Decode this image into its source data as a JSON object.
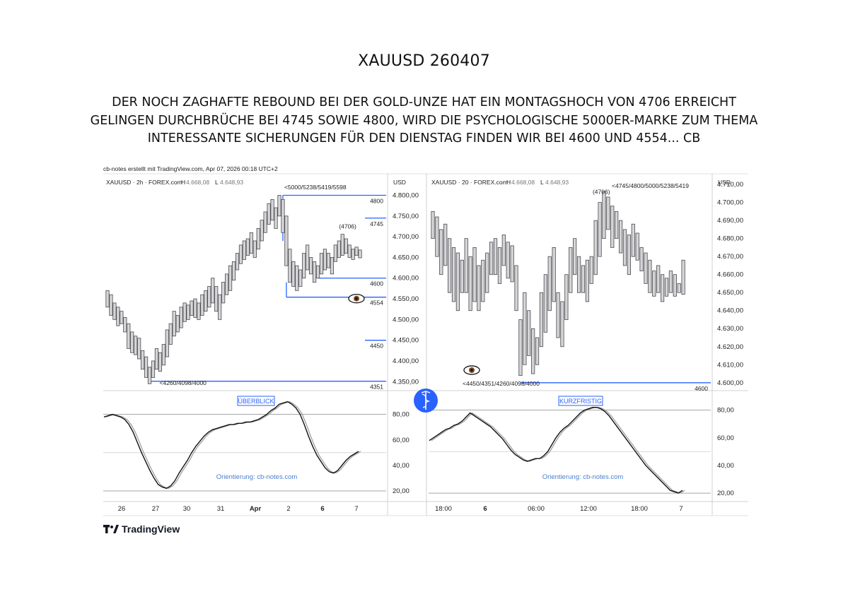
{
  "header": {
    "title": "XAUUSD 260407",
    "lines": [
      "DER NOCH ZAGHAFTE REBOUND BEI DER GOLD-UNZE HAT EIN MONTAGSHOCH VON 4706 ERREICHT",
      "GELINGEN DURCHBRÜCHE BEI 4745 SOWIE 4800, WIRD DIE PSYCHOLOGISCHE 5000ER-MARKE ZUM THEMA",
      "INTERESSANTE SICHERUNGEN FÜR DEN DIENSTAG FINDEN WIR BEI 4600 UND 4554... CB"
    ]
  },
  "credit": "cb-notes erstellt mit TradingView.com, Apr 07, 2026 00:18 UTC+2",
  "branding": {
    "name": "TradingView",
    "logo_icon": "tradingview-logo-icon",
    "center_badge_icon": "caduceus-icon",
    "badge_color": "#2962ff"
  },
  "colors": {
    "level_line": "#2962ff",
    "bar_fill": "#d5d5d8",
    "bar_stroke": "#4a4a4e",
    "osc_line": "#111111",
    "osc_signal": "#9a9a9a",
    "watermark": "#4a7fd0"
  },
  "chart_data": [
    {
      "type": "bar",
      "panel": "left",
      "symbol_line": {
        "name": "XAUUSD · 2h · FOREX.com",
        "h_label": "H",
        "h_value": "4.668,08",
        "l_label": "L",
        "l_value": "4.648,93"
      },
      "currency": "USD",
      "ylim": [
        4330,
        4835
      ],
      "y_ticks": [
        4350,
        4400,
        4450,
        4500,
        4550,
        4600,
        4650,
        4700,
        4750,
        4800
      ],
      "y_tick_labels": [
        "4.350,00",
        "4.400,00",
        "4.450,00",
        "4.500,00",
        "4.550,00",
        "4.600,00",
        "4.650,00",
        "4.700,00",
        "4.750,00",
        "4.800,00"
      ],
      "x_tick_labels": [
        "26",
        "27",
        "30",
        "31",
        "Apr",
        "2",
        "6",
        "7"
      ],
      "ohlc_hl": [
        [
          4570,
          4530
        ],
        [
          4560,
          4510
        ],
        [
          4540,
          4500
        ],
        [
          4530,
          4485
        ],
        [
          4520,
          4490
        ],
        [
          4505,
          4470
        ],
        [
          4490,
          4430
        ],
        [
          4470,
          4420
        ],
        [
          4460,
          4415
        ],
        [
          4455,
          4405
        ],
        [
          4425,
          4380
        ],
        [
          4410,
          4360
        ],
        [
          4385,
          4345
        ],
        [
          4400,
          4360
        ],
        [
          4430,
          4380
        ],
        [
          4420,
          4375
        ],
        [
          4440,
          4390
        ],
        [
          4475,
          4410
        ],
        [
          4490,
          4440
        ],
        [
          4520,
          4460
        ],
        [
          4510,
          4470
        ],
        [
          4530,
          4480
        ],
        [
          4540,
          4495
        ],
        [
          4535,
          4500
        ],
        [
          4545,
          4510
        ],
        [
          4550,
          4505
        ],
        [
          4540,
          4500
        ],
        [
          4560,
          4510
        ],
        [
          4570,
          4520
        ],
        [
          4580,
          4530
        ],
        [
          4600,
          4540
        ],
        [
          4580,
          4520
        ],
        [
          4560,
          4500
        ],
        [
          4590,
          4540
        ],
        [
          4610,
          4560
        ],
        [
          4630,
          4570
        ],
        [
          4640,
          4595
        ],
        [
          4660,
          4620
        ],
        [
          4680,
          4635
        ],
        [
          4690,
          4645
        ],
        [
          4695,
          4655
        ],
        [
          4710,
          4660
        ],
        [
          4690,
          4650
        ],
        [
          4720,
          4670
        ],
        [
          4740,
          4690
        ],
        [
          4760,
          4710
        ],
        [
          4780,
          4730
        ],
        [
          4790,
          4740
        ],
        [
          4770,
          4720
        ],
        [
          4800,
          4750
        ],
        [
          4790,
          4710
        ],
        [
          4750,
          4630
        ],
        [
          4670,
          4590
        ],
        [
          4640,
          4580
        ],
        [
          4630,
          4570
        ],
        [
          4620,
          4580
        ],
        [
          4660,
          4600
        ],
        [
          4680,
          4620
        ],
        [
          4650,
          4610
        ],
        [
          4640,
          4590
        ],
        [
          4630,
          4600
        ],
        [
          4660,
          4610
        ],
        [
          4670,
          4620
        ],
        [
          4660,
          4625
        ],
        [
          4650,
          4610
        ],
        [
          4680,
          4640
        ],
        [
          4690,
          4650
        ],
        [
          4706,
          4655
        ],
        [
          4695,
          4660
        ],
        [
          4680,
          4650
        ],
        [
          4670,
          4645
        ],
        [
          4675,
          4655
        ],
        [
          4668,
          4649
        ]
      ],
      "levels": [
        {
          "label": "4800",
          "value": 4800
        },
        {
          "label": "4745",
          "value": 4745
        },
        {
          "label": "4600",
          "value": 4600
        },
        {
          "label": "4554",
          "value": 4554
        },
        {
          "label": "4450",
          "value": 4450
        },
        {
          "label": "4351",
          "value": 4351
        }
      ],
      "annotations": [
        {
          "text": "<5000/5238/5419/5598"
        },
        {
          "text": "(4706)"
        },
        {
          "text": "<4260/4098/4000"
        }
      ],
      "eye_icon": "eye-icon",
      "oscillator": {
        "label": "ÜBERBLICK",
        "watermark": "Orientierung: cb-notes.com",
        "ylim": [
          15,
          92
        ],
        "y_ticks": [
          20,
          40,
          60,
          80
        ],
        "y_tick_labels": [
          "20,00",
          "40,00",
          "60,00",
          "80,00"
        ],
        "ref_levels": [
          20,
          50,
          80
        ],
        "values": [
          78,
          79,
          80,
          79,
          78,
          76,
          72,
          66,
          58,
          50,
          43,
          36,
          30,
          25,
          23,
          22,
          24,
          28,
          34,
          39,
          44,
          50,
          55,
          59,
          63,
          66,
          68,
          69,
          70,
          71,
          72,
          72,
          73,
          73,
          74,
          74,
          75,
          76,
          78,
          80,
          83,
          85,
          88,
          89,
          90,
          88,
          85,
          80,
          72,
          63,
          55,
          48,
          43,
          38,
          35,
          34,
          36,
          40,
          44,
          47,
          49,
          51
        ]
      }
    },
    {
      "type": "bar",
      "panel": "right",
      "symbol_line": {
        "name": "XAUUSD · 20 · FOREX.com",
        "h_label": "H",
        "h_value": "4.668,08",
        "l_label": "L",
        "l_value": "4.648,93"
      },
      "currency": "USD",
      "ylim": [
        4596,
        4712
      ],
      "y_ticks": [
        4600,
        4610,
        4620,
        4630,
        4640,
        4650,
        4660,
        4670,
        4680,
        4690,
        4700,
        4710
      ],
      "y_tick_labels": [
        "4.600,00",
        "4.610,00",
        "4.620,00",
        "4.630,00",
        "4.640,00",
        "4.650,00",
        "4.660,00",
        "4.670,00",
        "4.680,00",
        "4.690,00",
        "4.700,00",
        "4.710,00"
      ],
      "x_tick_labels": [
        "18:00",
        "6",
        "06:00",
        "12:00",
        "18:00",
        "7"
      ],
      "ohlc_hl": [
        [
          4695,
          4680
        ],
        [
          4692,
          4670
        ],
        [
          4685,
          4660
        ],
        [
          4688,
          4665
        ],
        [
          4680,
          4650
        ],
        [
          4675,
          4645
        ],
        [
          4672,
          4640
        ],
        [
          4668,
          4650
        ],
        [
          4680,
          4650
        ],
        [
          4670,
          4640
        ],
        [
          4675,
          4645
        ],
        [
          4665,
          4640
        ],
        [
          4668,
          4645
        ],
        [
          4672,
          4650
        ],
        [
          4678,
          4660
        ],
        [
          4680,
          4660
        ],
        [
          4675,
          4655
        ],
        [
          4682,
          4665
        ],
        [
          4678,
          4658
        ],
        [
          4676,
          4656
        ],
        [
          4665,
          4640
        ],
        [
          4635,
          4604
        ],
        [
          4650,
          4610
        ],
        [
          4640,
          4615
        ],
        [
          4630,
          4605
        ],
        [
          4625,
          4610
        ],
        [
          4650,
          4620
        ],
        [
          4660,
          4628
        ],
        [
          4670,
          4640
        ],
        [
          4675,
          4645
        ],
        [
          4650,
          4625
        ],
        [
          4645,
          4620
        ],
        [
          4660,
          4635
        ],
        [
          4675,
          4650
        ],
        [
          4680,
          4660
        ],
        [
          4670,
          4650
        ],
        [
          4665,
          4650
        ],
        [
          4668,
          4645
        ],
        [
          4670,
          4655
        ],
        [
          4690,
          4660
        ],
        [
          4700,
          4670
        ],
        [
          4706,
          4680
        ],
        [
          4703,
          4685
        ],
        [
          4698,
          4675
        ],
        [
          4695,
          4680
        ],
        [
          4690,
          4672
        ],
        [
          4685,
          4665
        ],
        [
          4682,
          4660
        ],
        [
          4688,
          4670
        ],
        [
          4683,
          4668
        ],
        [
          4675,
          4662
        ],
        [
          4672,
          4655
        ],
        [
          4668,
          4650
        ],
        [
          4662,
          4648
        ],
        [
          4665,
          4650
        ],
        [
          4660,
          4645
        ],
        [
          4658,
          4648
        ],
        [
          4662,
          4650
        ],
        [
          4660,
          4648
        ],
        [
          4655,
          4650
        ],
        [
          4668,
          4649
        ]
      ],
      "levels": [
        {
          "label": "4600",
          "value": 4600
        }
      ],
      "annotations": [
        {
          "text": "<4745/4800/5000/5238/5419"
        },
        {
          "text": "(4706)"
        },
        {
          "text": "<4450/4351/4260/4098/4000"
        }
      ],
      "eye_icon": "eye-icon",
      "oscillator": {
        "label": "KURZFRISTIG",
        "watermark": "Orientierung: cb-notes.com",
        "ylim": [
          17,
          88
        ],
        "y_ticks": [
          20,
          40,
          60,
          80
        ],
        "y_tick_labels": [
          "20,00",
          "40,00",
          "60,00",
          "80,00"
        ],
        "ref_levels": [
          20,
          50,
          80
        ],
        "values": [
          58,
          60,
          62,
          64,
          66,
          67,
          69,
          70,
          72,
          75,
          78,
          76,
          74,
          72,
          70,
          68,
          65,
          62,
          59,
          55,
          51,
          48,
          46,
          44,
          43,
          44,
          45,
          45,
          47,
          50,
          55,
          60,
          64,
          67,
          69,
          72,
          75,
          78,
          80,
          81,
          82,
          82,
          81,
          79,
          76,
          72,
          68,
          64,
          60,
          56,
          52,
          48,
          44,
          40,
          37,
          34,
          31,
          28,
          25,
          22,
          21,
          20,
          22
        ]
      }
    }
  ]
}
